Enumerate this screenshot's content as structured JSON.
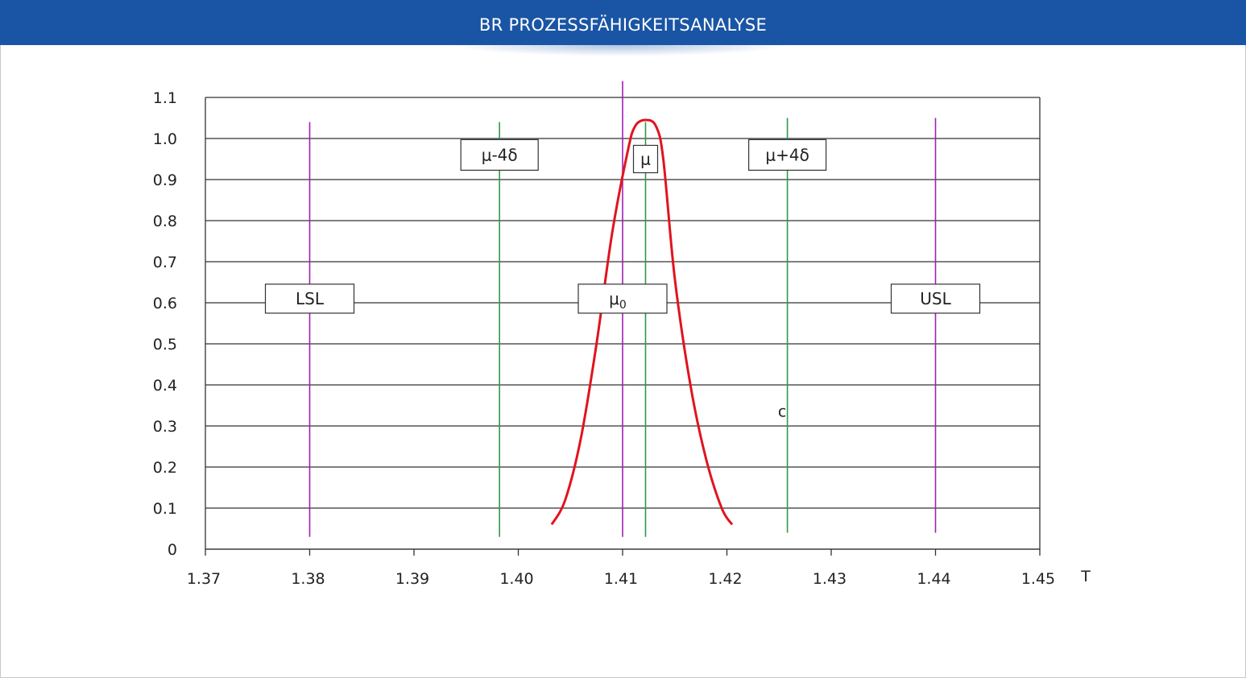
{
  "header": {
    "title": "BR PROZESSFÄHIGKEITSANALYSE"
  },
  "colors": {
    "header": "#1a55a5",
    "curve": "#e0141e",
    "spec_lines": "#a020b0",
    "sigma_lines": "#2e9a4a",
    "grid": "#333333"
  },
  "chart_data": {
    "type": "line",
    "xlabel": "T",
    "ylabel": "",
    "xlim": [
      1.37,
      1.45
    ],
    "ylim": [
      0,
      1.1
    ],
    "x_ticks": [
      "1.37",
      "1.38",
      "1.39",
      "1.40",
      "1.41",
      "1.42",
      "1.43",
      "1.44",
      "1.45"
    ],
    "y_ticks": [
      "0",
      "0.1",
      "0.2",
      "0.3",
      "0.4",
      "0.5",
      "0.6",
      "0.7",
      "0.8",
      "0.9",
      "1.0",
      "1.1"
    ],
    "grid": true,
    "series": [
      {
        "style": "normal-curve",
        "x": [
          1.4032,
          1.4045,
          1.406,
          1.4075,
          1.409,
          1.4105,
          1.4112,
          1.4122,
          1.4132,
          1.4139,
          1.415,
          1.4165,
          1.418,
          1.4195,
          1.4205
        ],
        "y": [
          0.06,
          0.12,
          0.27,
          0.5,
          0.77,
          0.97,
          1.03,
          1.045,
          1.03,
          0.95,
          0.66,
          0.4,
          0.22,
          0.1,
          0.06
        ]
      }
    ],
    "vertical_lines": [
      {
        "label": "LSL",
        "x": 1.38,
        "kind": "spec",
        "y_range": [
          0.03,
          1.04
        ],
        "label_y": 0.61
      },
      {
        "label": "μ-4δ",
        "x": 1.3982,
        "kind": "sigma",
        "y_range": [
          0.03,
          1.04
        ],
        "label_y": 0.96
      },
      {
        "label": "μ",
        "sub": "0",
        "x": 1.41,
        "kind": "spec",
        "y_range": [
          0.03,
          1.14
        ],
        "label_y": 0.61
      },
      {
        "label": "μ",
        "x": 1.4122,
        "kind": "sigma",
        "y_range": [
          0.03,
          1.04
        ],
        "label_y": 0.95
      },
      {
        "label": "μ+4δ",
        "x": 1.4258,
        "kind": "sigma",
        "y_range": [
          0.04,
          1.05
        ],
        "label_y": 0.96
      },
      {
        "label": "USL",
        "x": 1.44,
        "kind": "spec",
        "y_range": [
          0.04,
          1.05
        ],
        "label_y": 0.61
      }
    ],
    "annotations": [
      {
        "text": "c",
        "x": 1.4253,
        "y": 0.33
      }
    ]
  }
}
